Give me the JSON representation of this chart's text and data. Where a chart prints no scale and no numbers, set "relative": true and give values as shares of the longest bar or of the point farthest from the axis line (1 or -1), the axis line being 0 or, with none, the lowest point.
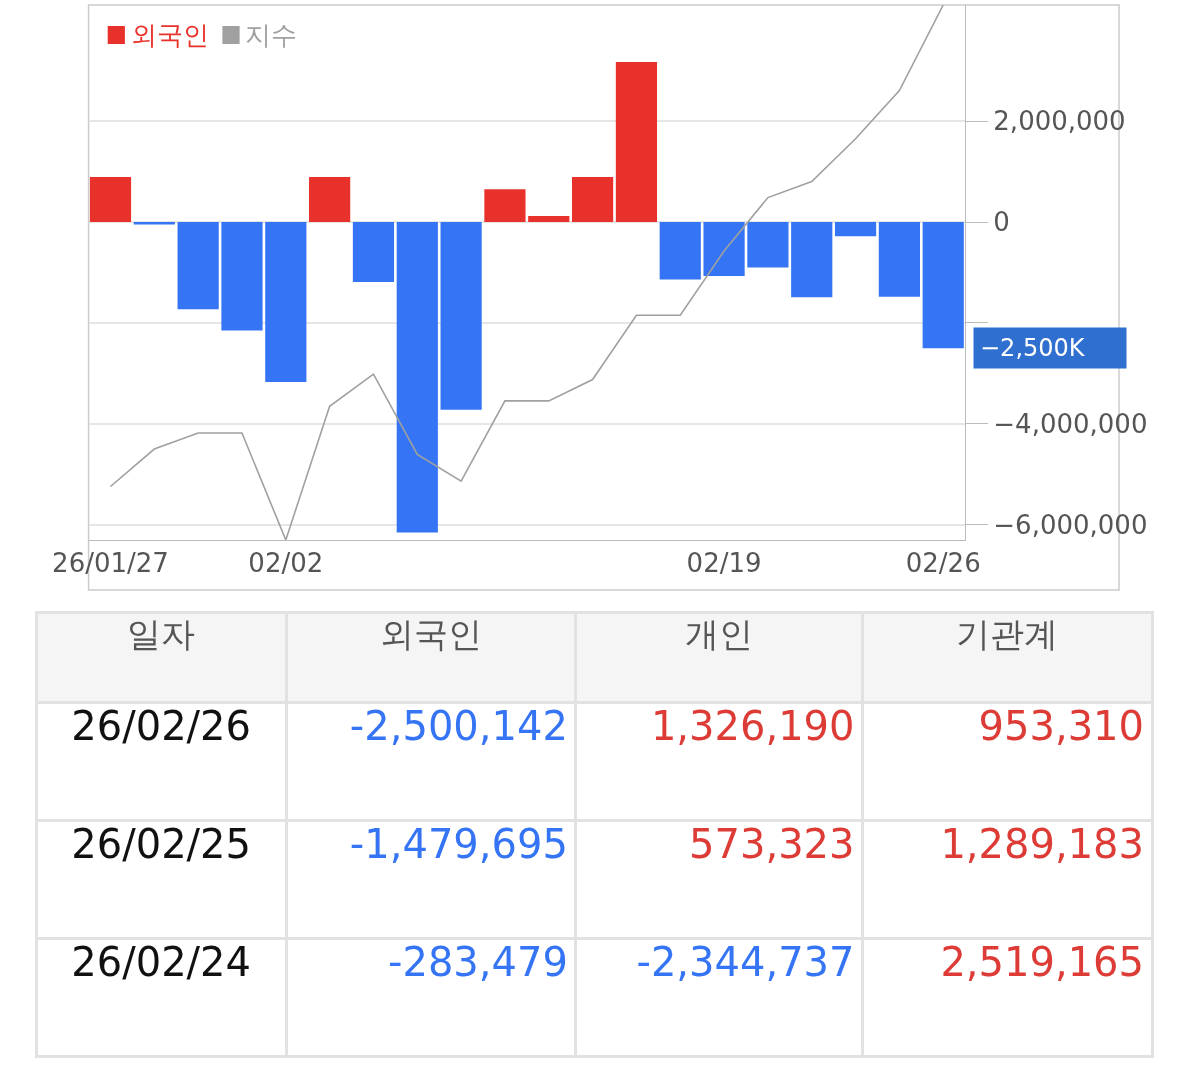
{
  "chart_data": [
    {
      "type": "bar",
      "categories": [
        "26/01/27",
        null,
        null,
        null,
        "02/02",
        null,
        null,
        null,
        null,
        null,
        null,
        null,
        null,
        null,
        "02/19",
        null,
        null,
        null,
        null,
        "02/26"
      ],
      "series": [
        {
          "name": "외국인",
          "color": "#e8312a",
          "values": [
            890000,
            -50000,
            -1730000,
            -2150000,
            -3170000,
            890000,
            -1190000,
            -6150000,
            -3720000,
            650000,
            120000,
            890000,
            3170000,
            -1140000,
            -1070000,
            -900000,
            -1490000,
            -280000,
            -1480000,
            -2500000
          ],
          "colors": [
            "#e8312a",
            "#3574f4",
            "#3574f4",
            "#3574f4",
            "#3574f4",
            "#e8312a",
            "#3574f4",
            "#3574f4",
            "#3574f4",
            "#e8312a",
            "#e8312a",
            "#e8312a",
            "#e8312a",
            "#3574f4",
            "#3574f4",
            "#3574f4",
            "#3574f4",
            "#3574f4",
            "#3574f4",
            "#3574f4"
          ]
        }
      ],
      "ylim": [
        -6300000,
        4300000
      ],
      "yticks": [
        {
          "value": 2000000,
          "label": "2,000,000"
        },
        0,
        {
          "value": -2000000,
          "label": null
        },
        {
          "value": -4000000,
          "label": "−4,000,000"
        },
        {
          "value": -6000000,
          "label": "−6,000,000"
        }
      ],
      "grid": "y",
      "legend": "top left",
      "annotations": [
        "−2,500K"
      ]
    },
    {
      "type": "line",
      "relative": true,
      "legend": "top left",
      "categories": [
        null,
        null,
        null,
        null,
        null,
        null,
        null,
        null,
        null,
        null,
        null,
        null,
        null,
        null,
        null,
        null,
        null,
        null,
        null,
        null
      ],
      "series": [
        {
          "name": "지수",
          "color": "#a0a0a0",
          "values": [
            0.1,
            0.17,
            0.2,
            0.2,
            0.0,
            0.25,
            0.31,
            0.16,
            0.11,
            0.26,
            0.26,
            0.3,
            0.42,
            0.42,
            0.54,
            0.64,
            0.67,
            0.75,
            0.84,
            1.0
          ]
        }
      ]
    },
    {
      "type": "other",
      "categories": [
        "일자",
        "외국인",
        "개인",
        "기관계"
      ],
      "y_categories": [
        "26/02/26",
        "26/02/25",
        "26/02/24"
      ],
      "cell_labels": [
        [
          "-2,500,142",
          "1,326,190",
          "953,310"
        ],
        [
          "-1,479,695",
          "573,323",
          "1,289,183"
        ],
        [
          "-283,479",
          "-2,344,737",
          "2,519,165"
        ]
      ],
      "colors": [
        [
          "#3574f4",
          "#dd3b36",
          "#dd3b36"
        ],
        [
          "#3574f4",
          "#dd3b36",
          "#dd3b36"
        ],
        [
          "#3574f4",
          "#3574f4",
          "#dd3b36"
        ]
      ]
    }
  ]
}
